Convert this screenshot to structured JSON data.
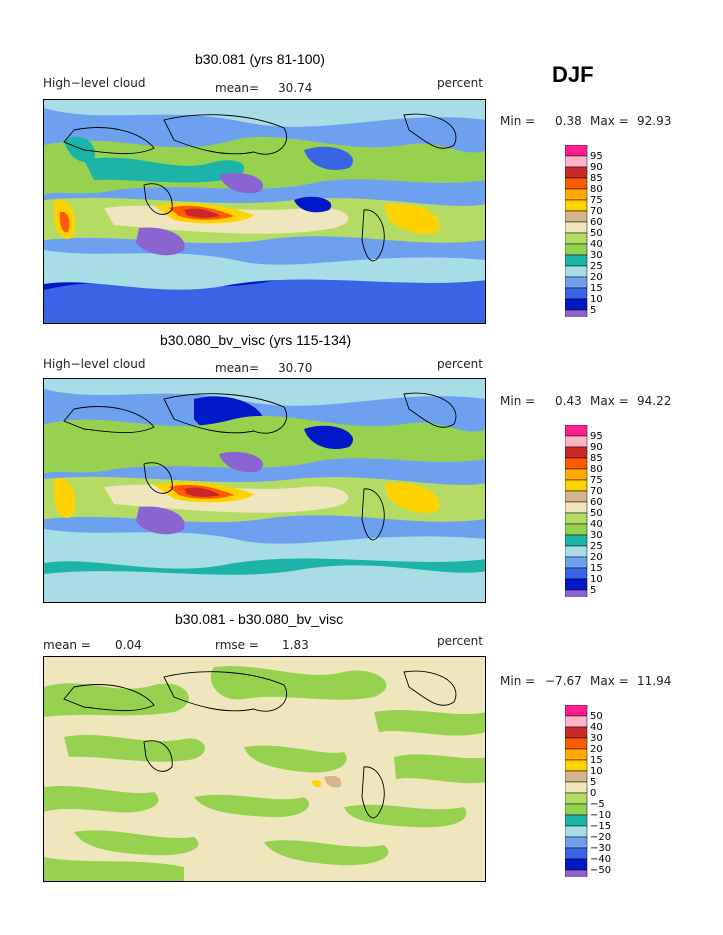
{
  "season": "DJF",
  "panels": [
    {
      "title": "b30.081 (yrs 81-100)",
      "left_label": "High−level cloud",
      "stat1_label": "mean=",
      "stat1_value": "30.74",
      "stat2_label": "",
      "stat2_value": "",
      "units": "percent",
      "min_label": "Min =",
      "min_value": "0.38",
      "max_label": "Max =",
      "max_value": "92.93"
    },
    {
      "title": "b30.080_bv_visc (yrs 115-134)",
      "left_label": "High−level cloud",
      "stat1_label": "mean=",
      "stat1_value": "30.70",
      "stat2_label": "",
      "stat2_value": "",
      "units": "percent",
      "min_label": "Min =",
      "min_value": "0.43",
      "max_label": "Max =",
      "max_value": "94.22"
    },
    {
      "title": "b30.081 - b30.080_bv_visc",
      "left_label": "mean =",
      "left_value": "0.04",
      "stat1_label": "",
      "stat1_value": "",
      "stat2_label": "rmse =",
      "stat2_value": "1.83",
      "units": "percent",
      "min_label": "Min =",
      "min_value": "−7.67",
      "max_label": "Max =",
      "max_value": "11.94"
    }
  ],
  "chart_data": [
    {
      "type": "heatmap",
      "title": "b30.081 (yrs 81-100)",
      "variable": "High-level cloud",
      "units": "percent",
      "mean": 30.74,
      "min": 0.38,
      "max": 92.93,
      "contour_levels": [
        5,
        10,
        15,
        20,
        25,
        30,
        40,
        50,
        60,
        70,
        75,
        80,
        85,
        90,
        95
      ],
      "colors": [
        "#8c64d2",
        "#0018c8",
        "#3a64e6",
        "#6ea0f0",
        "#a8dce6",
        "#1cb4a8",
        "#96d250",
        "#b4dc64",
        "#f0e6be",
        "#d8b48c",
        "#ffd200",
        "#ffaa00",
        "#ff5a00",
        "#c82828",
        "#ffb4c8",
        "#ff1e8c"
      ]
    },
    {
      "type": "heatmap",
      "title": "b30.080_bv_visc (yrs 115-134)",
      "variable": "High-level cloud",
      "units": "percent",
      "mean": 30.7,
      "min": 0.43,
      "max": 94.22,
      "contour_levels": [
        5,
        10,
        15,
        20,
        25,
        30,
        40,
        50,
        60,
        70,
        75,
        80,
        85,
        90,
        95
      ],
      "colors": [
        "#8c64d2",
        "#0018c8",
        "#3a64e6",
        "#6ea0f0",
        "#a8dce6",
        "#1cb4a8",
        "#96d250",
        "#b4dc64",
        "#f0e6be",
        "#d8b48c",
        "#ffd200",
        "#ffaa00",
        "#ff5a00",
        "#c82828",
        "#ffb4c8",
        "#ff1e8c"
      ]
    },
    {
      "type": "heatmap",
      "title": "b30.081 - b30.080_bv_visc",
      "units": "percent",
      "mean": 0.04,
      "rmse": 1.83,
      "min": -7.67,
      "max": 11.94,
      "contour_levels": [
        -50,
        -40,
        -30,
        -20,
        -15,
        -10,
        -5,
        0,
        5,
        10,
        15,
        20,
        30,
        40,
        50
      ],
      "colors": [
        "#8c64d2",
        "#0018c8",
        "#3a64e6",
        "#6ea0f0",
        "#a8dce6",
        "#1cb4a8",
        "#96d250",
        "#b4dc64",
        "#f0e6be",
        "#d8b48c",
        "#ffd200",
        "#ffaa00",
        "#ff5a00",
        "#c82828",
        "#ffb4c8",
        "#ff1e8c"
      ]
    }
  ],
  "legend_labels": [
    [
      "95",
      "90",
      "85",
      "80",
      "75",
      "70",
      "60",
      "50",
      "40",
      "30",
      "25",
      "20",
      "15",
      "10",
      "5"
    ],
    [
      "95",
      "90",
      "85",
      "80",
      "75",
      "70",
      "60",
      "50",
      "40",
      "30",
      "25",
      "20",
      "15",
      "10",
      "5"
    ],
    [
      "50",
      "40",
      "30",
      "20",
      "15",
      "10",
      "5",
      "0",
      "−5",
      "−10",
      "−15",
      "−20",
      "−30",
      "−40",
      "−50"
    ]
  ]
}
